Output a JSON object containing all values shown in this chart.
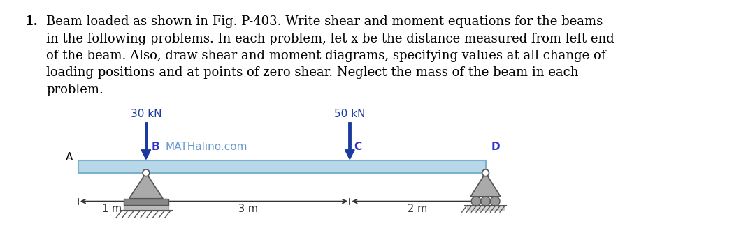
{
  "title_number": "1.",
  "title_text": "Beam loaded as shown in Fig. P-403. Write shear and moment equations for the beams\nin the following problems. In each problem, let x be the distance measured from left end\nof the beam. Also, draw shear and moment diagrams, specifying values at all change of\nloading positions and at points of zero shear. Neglect the mass of the beam in each\nproblem.",
  "load1_label": "30 kN",
  "load2_label": "50 kN",
  "label_A": "A",
  "label_B": "B",
  "label_C": "C",
  "label_D": "D",
  "watermark": "MATHalino.com",
  "dim1": "1 m",
  "dim2": "3 m",
  "dim3": "2 m",
  "bg_color": "#ffffff",
  "text_color": "#000000",
  "load_color": "#1a3a9f",
  "beam_face_color": "#b8d8ea",
  "beam_edge_color": "#7ab0cc",
  "support_face_color": "#aaaaaa",
  "support_edge_color": "#555555",
  "label_B_color": "#3333cc",
  "watermark_color": "#6699cc",
  "dim_color": "#333333",
  "label_C_color": "#3333cc",
  "label_D_color": "#3333cc"
}
